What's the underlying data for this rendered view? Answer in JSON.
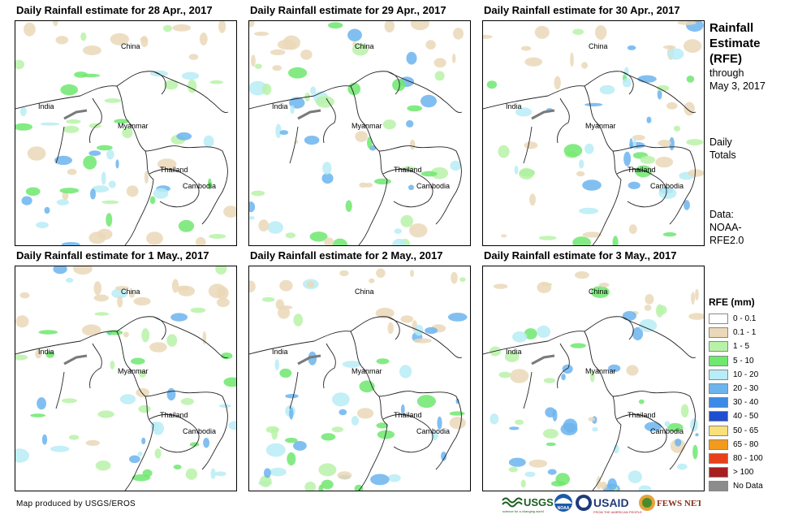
{
  "panels": [
    {
      "title": "Daily Rainfall estimate for 28 Apr., 2017",
      "labels": {
        "china": "China",
        "india": "India",
        "myanmar": "Myanmar",
        "thailand": "Thailand",
        "cambodia": "Cambodia"
      }
    },
    {
      "title": "Daily Rainfall estimate for 29 Apr., 2017",
      "labels": {
        "china": "China",
        "india": "India",
        "myanmar": "Myanmar",
        "thailand": "Thailand",
        "cambodia": "Cambodia"
      }
    },
    {
      "title": "Daily Rainfall estimate for 30 Apr., 2017",
      "labels": {
        "china": "China",
        "india": "India",
        "myanmar": "Myanmar",
        "thailand": "Thailand",
        "cambodia": "Cambodia"
      }
    },
    {
      "title": "Daily Rainfall estimate for 1 May., 2017",
      "labels": {
        "china": "China",
        "india": "India",
        "myanmar": "Myanmar",
        "thailand": "Thailand",
        "cambodia": "Cambodia"
      }
    },
    {
      "title": "Daily Rainfall estimate for 2 May., 2017",
      "labels": {
        "china": "China",
        "india": "India",
        "myanmar": "Myanmar",
        "thailand": "Thailand",
        "cambodia": "Cambodia"
      }
    },
    {
      "title": "Daily Rainfall estimate for 3 May., 2017",
      "labels": {
        "china": "China",
        "india": "India",
        "myanmar": "Myanmar",
        "thailand": "Thailand",
        "cambodia": "Cambodia"
      }
    }
  ],
  "sidebar": {
    "title_line1": "Rainfall",
    "title_line2": "Estimate",
    "title_line3": "(RFE)",
    "through": "through",
    "date": "May 3, 2017",
    "daily": "Daily",
    "totals": "Totals",
    "data_label": "Data:",
    "source_line1": "NOAA-",
    "source_line2": "RFE2.0"
  },
  "legend": {
    "title": "RFE (mm)",
    "items": [
      {
        "label": "0 - 0.1",
        "color": "#ffffff"
      },
      {
        "label": "0.1 - 1",
        "color": "#ead8b8"
      },
      {
        "label": "1 - 5",
        "color": "#b8f2a8"
      },
      {
        "label": "5 - 10",
        "color": "#6ee86e"
      },
      {
        "label": "10 - 20",
        "color": "#b8ecf6"
      },
      {
        "label": "20 - 30",
        "color": "#6cb4ee"
      },
      {
        "label": "30 - 40",
        "color": "#3c8ae8"
      },
      {
        "label": "40 - 50",
        "color": "#1e4fd0"
      },
      {
        "label": "50 - 65",
        "color": "#f8e07a"
      },
      {
        "label": "65 - 80",
        "color": "#f39a1a"
      },
      {
        "label": "80 - 100",
        "color": "#e8401a"
      },
      {
        "label": "> 100",
        "color": "#a81e1e"
      },
      {
        "label": "No Data",
        "color": "#8c8c8c"
      }
    ]
  },
  "footer": {
    "credit": "Map produced by USGS/EROS",
    "logos": {
      "usgs": "USGS",
      "usgs_tagline": "science for a changing world",
      "noaa": "NOAA",
      "usaid": "USAID",
      "usaid_tagline": "FROM THE AMERICAN PEOPLE",
      "fewsnet": "FEWS NET"
    }
  }
}
